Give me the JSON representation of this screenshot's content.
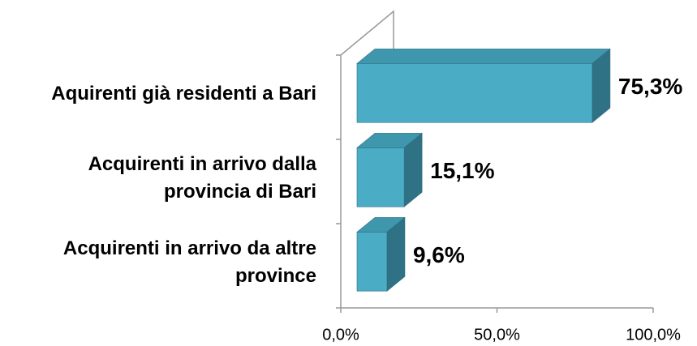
{
  "chart_data": {
    "type": "bar3d_horizontal",
    "categories": [
      "Aquirenti già residenti a Bari",
      "Acquirenti in arrivo dalla provincia di Bari",
      "Acquirenti in arrivo da altre province"
    ],
    "values": [
      75.3,
      15.1,
      9.6
    ],
    "value_labels": [
      "75,3%",
      "15,1%",
      "9,6%"
    ],
    "color": "#4bacc6",
    "xlim": [
      0,
      100
    ],
    "xticks": [
      {
        "value": 0,
        "label": "0,0%"
      },
      {
        "value": 50,
        "label": "50,0%"
      },
      {
        "value": 100,
        "label": "100,0%"
      }
    ]
  }
}
